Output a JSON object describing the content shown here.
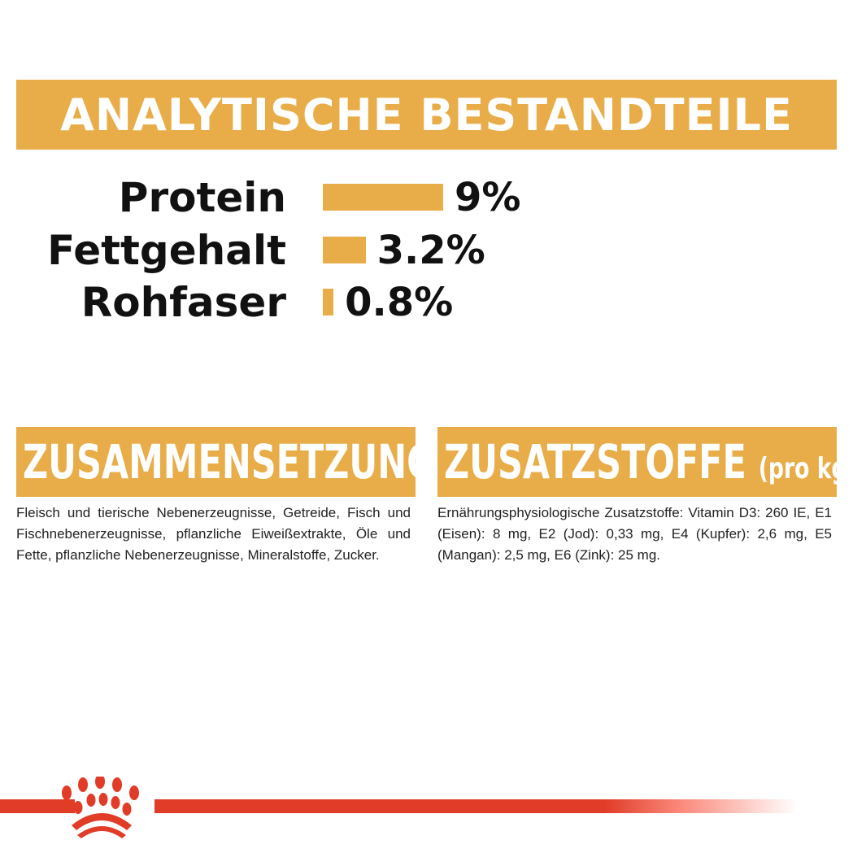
{
  "header": {
    "title": "ANALYTISCHE BESTANDTEILE"
  },
  "nutrients": [
    {
      "label": "Protein",
      "value": "9%",
      "percent": 9
    },
    {
      "label": "Fettgehalt",
      "value": "3.2%",
      "percent": 3.2
    },
    {
      "label": "Rohfaser",
      "value": "0.8%",
      "percent": 0.8
    }
  ],
  "composition": {
    "title": "ZUSAMMENSETZUNG",
    "text": "Fleisch und tierische Nebenerzeugnisse, Getreide, Fisch und Fischnebenerzeugnisse, pflanzliche Eiweißextrakte, Öle und Fette, pflanzliche Nebenerzeugnisse, Mineralstoffe, Zucker."
  },
  "additives": {
    "title": "ZUSATZSTOFFE",
    "unit": "(pro kg)",
    "text": "Ernährungsphysiologische Zusatzstoffe: Vitamin D3: 260 IE, E1 (Eisen): 8 mg, E2 (Jod): 0,33 mg, E4 (Kupfer): 2,6 mg, E5 (Mangan): 2,5 mg, E6 (Zink): 25 mg."
  },
  "colors": {
    "accent": "#e8ad48",
    "brand_red": "#e03c28"
  },
  "logo": {
    "icon": "royal-canin-crown-logo"
  }
}
